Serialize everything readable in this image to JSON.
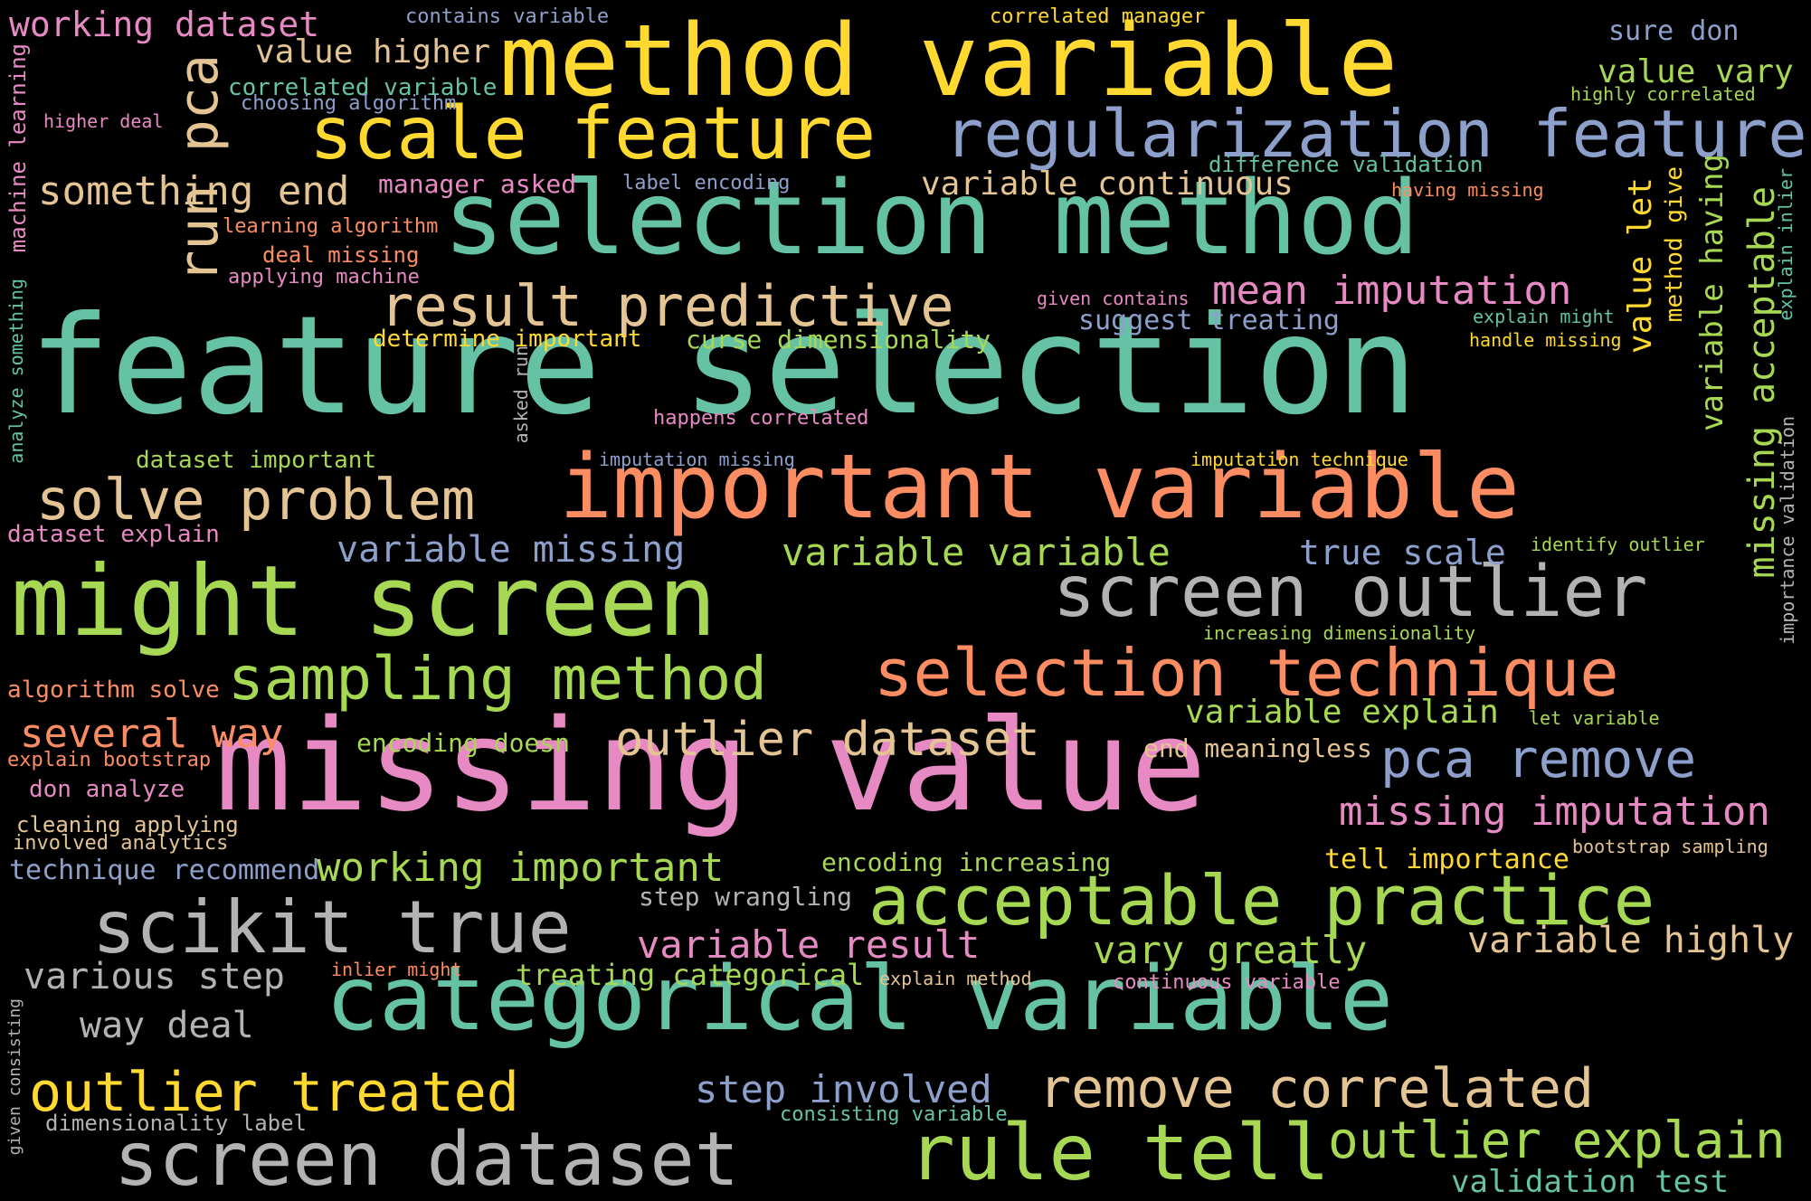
{
  "words": [
    {
      "text": "feature selection",
      "color": "#66c2a5"
    },
    {
      "text": "missing value",
      "color": "#e78ac3"
    },
    {
      "text": "method variable",
      "color": "#ffd92f"
    },
    {
      "text": "selection method",
      "color": "#66c2a5"
    },
    {
      "text": "important variable",
      "color": "#fc8d62"
    },
    {
      "text": "categorical variable",
      "color": "#66c2a5"
    },
    {
      "text": "might screen",
      "color": "#a6d854"
    },
    {
      "text": "scale feature",
      "color": "#ffd92f"
    },
    {
      "text": "regularization feature",
      "color": "#8da0cb"
    },
    {
      "text": "screen outlier",
      "color": "#b3b3b3"
    },
    {
      "text": "selection technique",
      "color": "#fc8d62"
    },
    {
      "text": "acceptable practice",
      "color": "#a6d854"
    },
    {
      "text": "scikit true",
      "color": "#b3b3b3"
    },
    {
      "text": "screen dataset",
      "color": "#b3b3b3"
    },
    {
      "text": "rule tell",
      "color": "#a6d854"
    },
    {
      "text": "result predictive",
      "color": "#e5c494"
    },
    {
      "text": "sampling method",
      "color": "#a6d854"
    },
    {
      "text": "run pca",
      "color": "#e5c494"
    },
    {
      "text": "solve problem",
      "color": "#e5c494"
    },
    {
      "text": "remove correlated",
      "color": "#e5c494"
    },
    {
      "text": "outlier treated",
      "color": "#ffd92f"
    },
    {
      "text": "outlier explain",
      "color": "#a6d854"
    },
    {
      "text": "pca remove",
      "color": "#8da0cb"
    },
    {
      "text": "outlier dataset",
      "color": "#e5c494"
    },
    {
      "text": "mean imputation",
      "color": "#e78ac3"
    },
    {
      "text": "missing imputation",
      "color": "#e78ac3"
    },
    {
      "text": "something end",
      "color": "#e5c494"
    },
    {
      "text": "working important",
      "color": "#a6d854"
    },
    {
      "text": "several way",
      "color": "#fc8d62"
    },
    {
      "text": "variable missing",
      "color": "#8da0cb"
    },
    {
      "text": "variable variable",
      "color": "#a6d854"
    },
    {
      "text": "variable result",
      "color": "#e78ac3"
    },
    {
      "text": "vary greatly",
      "color": "#a6d854"
    },
    {
      "text": "variable highly",
      "color": "#e5c494"
    },
    {
      "text": "various step",
      "color": "#b3b3b3"
    },
    {
      "text": "way deal",
      "color": "#b3b3b3"
    },
    {
      "text": "step involved",
      "color": "#8da0cb"
    },
    {
      "text": "variable continuous",
      "color": "#e5c494"
    },
    {
      "text": "working dataset",
      "color": "#e78ac3"
    },
    {
      "text": "value higher",
      "color": "#e5c494"
    },
    {
      "text": "true scale",
      "color": "#8da0cb"
    },
    {
      "text": "variable explain",
      "color": "#a6d854"
    },
    {
      "text": "value vary",
      "color": "#a6d854"
    },
    {
      "text": "validation test",
      "color": "#66c2a5"
    },
    {
      "text": "suggest treating",
      "color": "#8da0cb"
    },
    {
      "text": "curse dimensionality",
      "color": "#a6d854"
    },
    {
      "text": "treating categorical",
      "color": "#a6d854"
    },
    {
      "text": "tell importance",
      "color": "#ffd92f"
    },
    {
      "text": "technique recommend",
      "color": "#8da0cb"
    },
    {
      "text": "encoding increasing",
      "color": "#a6d854"
    },
    {
      "text": "step wrangling",
      "color": "#b3b3b3"
    },
    {
      "text": "end meaningless",
      "color": "#e5c494"
    },
    {
      "text": "encoding doesn",
      "color": "#a6d854"
    },
    {
      "text": "sure don",
      "color": "#8da0cb"
    },
    {
      "text": "correlated variable",
      "color": "#66c2a5"
    },
    {
      "text": "choosing algorithm",
      "color": "#8da0cb"
    },
    {
      "text": "manager asked",
      "color": "#e78ac3"
    },
    {
      "text": "dataset important",
      "color": "#a6d854"
    },
    {
      "text": "determine important",
      "color": "#ffd92f"
    },
    {
      "text": "dataset explain",
      "color": "#e78ac3"
    },
    {
      "text": "algorithm solve",
      "color": "#fc8d62"
    },
    {
      "text": "explain bootstrap",
      "color": "#fc8d62"
    },
    {
      "text": "don analyze",
      "color": "#e78ac3"
    },
    {
      "text": "cleaning applying",
      "color": "#e5c494"
    },
    {
      "text": "involved analytics",
      "color": "#e5c494"
    },
    {
      "text": "dimensionality label",
      "color": "#b3b3b3"
    },
    {
      "text": "consisting variable",
      "color": "#66c2a5"
    },
    {
      "text": "contains variable",
      "color": "#8da0cb"
    },
    {
      "text": "correlated manager",
      "color": "#ffd92f"
    },
    {
      "text": "highly correlated",
      "color": "#a6d854"
    },
    {
      "text": "difference validation",
      "color": "#66c2a5"
    },
    {
      "text": "having missing",
      "color": "#fc8d62"
    },
    {
      "text": "label encoding",
      "color": "#8da0cb"
    },
    {
      "text": "higher deal",
      "color": "#e78ac3"
    },
    {
      "text": "learning algorithm",
      "color": "#fc8d62"
    },
    {
      "text": "deal missing",
      "color": "#fc8d62"
    },
    {
      "text": "applying machine",
      "color": "#e78ac3"
    },
    {
      "text": "given contains",
      "color": "#e78ac3"
    },
    {
      "text": "explain might",
      "color": "#66c2a5"
    },
    {
      "text": "handle missing",
      "color": "#ffd92f"
    },
    {
      "text": "happens correlated",
      "color": "#e78ac3"
    },
    {
      "text": "imputation missing",
      "color": "#8da0cb"
    },
    {
      "text": "imputation technique",
      "color": "#ffd92f"
    },
    {
      "text": "identify outlier",
      "color": "#a6d854"
    },
    {
      "text": "increasing dimensionality",
      "color": "#a6d854"
    },
    {
      "text": "let variable",
      "color": "#a6d854"
    },
    {
      "text": "bootstrap sampling",
      "color": "#e5c494"
    },
    {
      "text": "inlier might",
      "color": "#fc8d62"
    },
    {
      "text": "explain method",
      "color": "#e5c494"
    },
    {
      "text": "continuous variable",
      "color": "#e78ac3"
    },
    {
      "text": "machine learning",
      "color": "#e78ac3"
    },
    {
      "text": "analyze something",
      "color": "#66c2a5"
    },
    {
      "text": "asked run",
      "color": "#b3b3b3"
    },
    {
      "text": "value let",
      "color": "#ffd92f"
    },
    {
      "text": "method give",
      "color": "#ffd92f"
    },
    {
      "text": "variable having",
      "color": "#a6d854"
    },
    {
      "text": "missing acceptable",
      "color": "#a6d854"
    },
    {
      "text": "explain inlier",
      "color": "#66c2a5"
    },
    {
      "text": "importance validation",
      "color": "#b3b3b3"
    },
    {
      "text": "given consisting",
      "color": "#b3b3b3"
    }
  ]
}
